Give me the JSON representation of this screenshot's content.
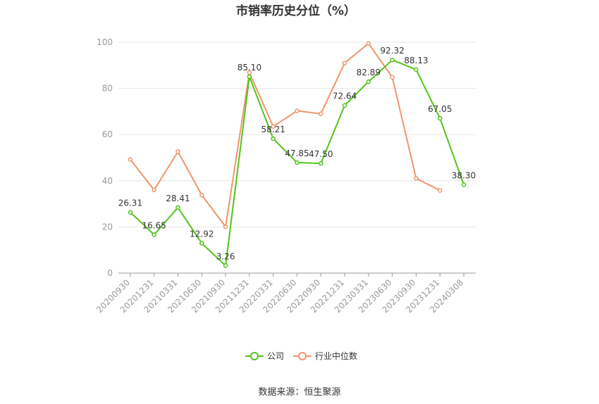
{
  "chart_data": {
    "type": "line",
    "title": "市销率历史分位（%）",
    "categories": [
      "20200930",
      "20201231",
      "20210331",
      "20210630",
      "20210930",
      "20211231",
      "20220331",
      "20220630",
      "20220930",
      "20221231",
      "20230331",
      "20230630",
      "20230930",
      "20231231",
      "20240308"
    ],
    "ylim": [
      0,
      100
    ],
    "yticks": [
      0,
      20,
      40,
      60,
      80,
      100
    ],
    "grid": true,
    "legend_position": "bottom",
    "series": [
      {
        "name": "公司",
        "color": "#52c41a",
        "values": [
          26.31,
          16.65,
          28.41,
          12.92,
          3.26,
          85.1,
          58.21,
          47.85,
          47.5,
          72.64,
          82.89,
          92.32,
          88.13,
          67.05,
          38.3
        ],
        "labels": [
          "26.31",
          "16.65",
          "28.41",
          "12.92",
          "3.26",
          "85.10",
          "58.21",
          "47.85",
          "47.50",
          "72.64",
          "82.89",
          "92.32",
          "88.13",
          "67.05",
          "38.30"
        ]
      },
      {
        "name": "行业中位数",
        "color": "#f0956a",
        "values": [
          49.2,
          36.0,
          52.6,
          33.8,
          20.1,
          86.8,
          63.5,
          70.3,
          69.0,
          91.0,
          99.5,
          84.8,
          41.0,
          35.8,
          null
        ]
      }
    ],
    "source": "数据来源：恒生聚源"
  }
}
